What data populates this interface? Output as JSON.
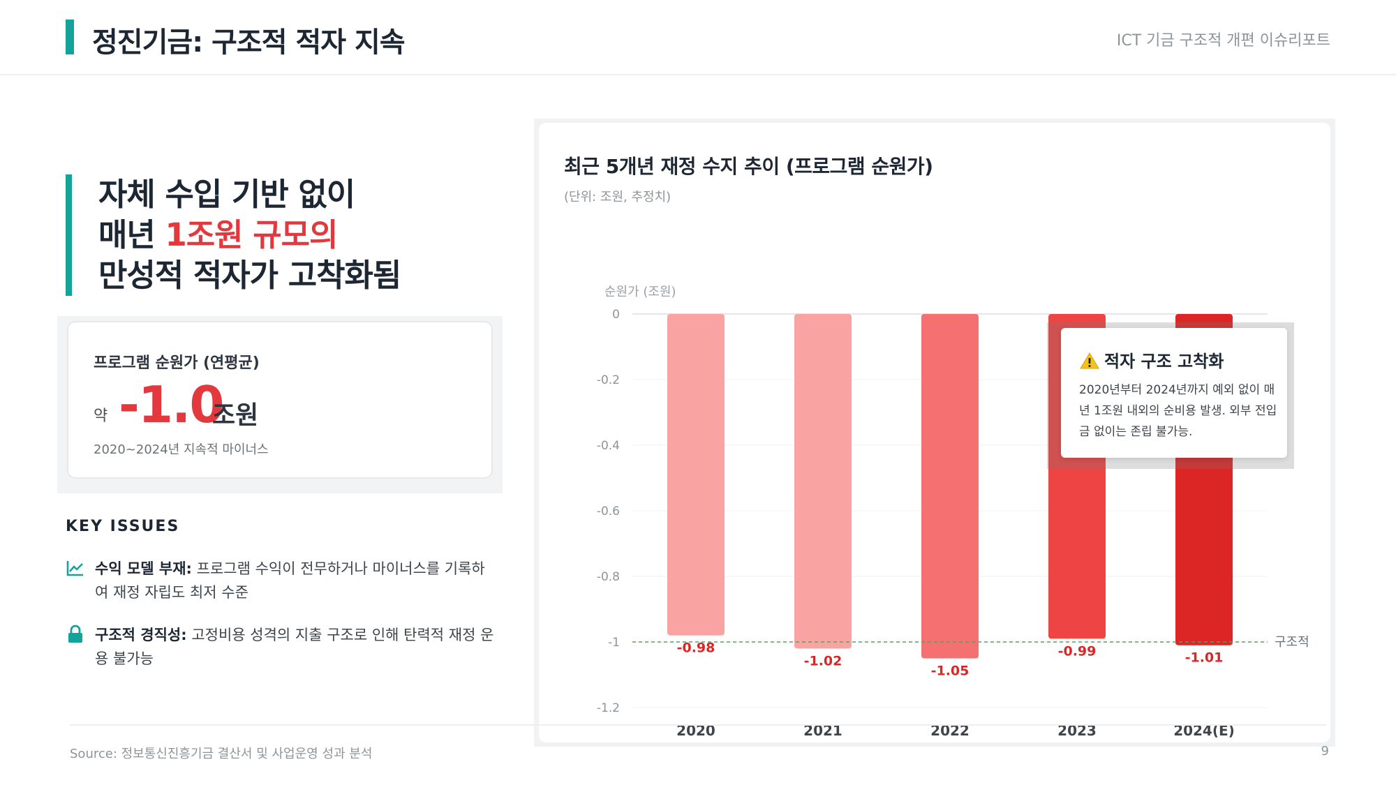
{
  "header": {
    "title": "정진기금: 구조적 적자 지속",
    "report_name": "ICT 기금 구조적 개편 이슈리포트"
  },
  "headline": {
    "line1": "자체 수입 기반 없이",
    "line2_prefix": "매년 ",
    "line2_accent": "1조원 규모의",
    "line3": "만성적 적자가 고착화됨"
  },
  "stat": {
    "label": "프로그램 순원가 (연평균)",
    "approx": "약",
    "value": "-1.0",
    "unit": "조원",
    "sub": "2020~2024년 지속적 마이너스"
  },
  "issues": {
    "heading": "KEY ISSUES",
    "items": [
      {
        "icon": "trend-chart-icon",
        "title": "수익 모델 부재:",
        "text": " 프로그램 수익이 전무하거나 마이너스를 기록하여 재정 자립도 최저 수준"
      },
      {
        "icon": "lock-icon",
        "title": "구조적 경직성:",
        "text": " 고정비용 성격의 지출 구조로 인해 탄력적 재정 운용 불가능"
      }
    ]
  },
  "footer": {
    "source": "Source: 정보통신진흥기금 결산서 및 사업운영 성과 분석",
    "page": "9"
  },
  "chart_panel": {
    "title": "최근 5개년 재정 수지 추이 (프로그램 순원가)",
    "unit_note": "(단위: 조원, 추정치)"
  },
  "callout": {
    "icon": "warning-icon",
    "title": "적자 구조 고착화",
    "body": "2020년부터 2024년까지 예외 없이 매년 1조원 내외의 순비용 발생. 외부 전입금 없이는 존립 불가능."
  },
  "chart_data": {
    "type": "bar",
    "categories": [
      "2020",
      "2021",
      "2022",
      "2023",
      "2024(E)"
    ],
    "values": [
      -0.98,
      -1.02,
      -1.05,
      -0.99,
      -1.01
    ],
    "value_labels": [
      "-0.98",
      "-1.02",
      "-1.05",
      "-0.99",
      "-1.01"
    ],
    "ylabel": "순원가 (조원)",
    "ylim": [
      -1.2,
      0
    ],
    "yticks": [
      0,
      -0.2,
      -0.4,
      -0.6,
      -0.8,
      -1,
      -1.2
    ],
    "ytick_labels": [
      "0",
      "-0.2",
      "-0.4",
      "-0.6",
      "-0.8",
      "-1",
      "-1.2"
    ],
    "reference_line": {
      "value": -1,
      "label": "구조적"
    },
    "bar_colors": [
      "#f9a3a3",
      "#f9a3a3",
      "#f57070",
      "#ee4444",
      "#dc2626"
    ],
    "label_color": "#dc2626",
    "reference_color": "#5aa15a",
    "grid": true
  }
}
